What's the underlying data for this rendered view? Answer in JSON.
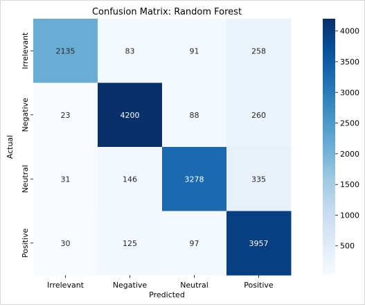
{
  "chart_data": {
    "type": "heatmap",
    "title": "Confusion Matrix: Random Forest",
    "xlabel": "Predicted",
    "ylabel": "Actual",
    "x_categories": [
      "Irrelevant",
      "Negative",
      "Neutral",
      "Positive"
    ],
    "y_categories": [
      "Irrelevant",
      "Negative",
      "Neutral",
      "Positive"
    ],
    "values": [
      [
        2135,
        83,
        91,
        258
      ],
      [
        23,
        4200,
        88,
        260
      ],
      [
        31,
        146,
        3278,
        335
      ],
      [
        30,
        125,
        97,
        3957
      ]
    ],
    "colormap": "Blues",
    "vmin": 23,
    "vmax": 4200,
    "colorbar_ticks": [
      500,
      1000,
      1500,
      2000,
      2500,
      3000,
      3500,
      4000
    ]
  }
}
